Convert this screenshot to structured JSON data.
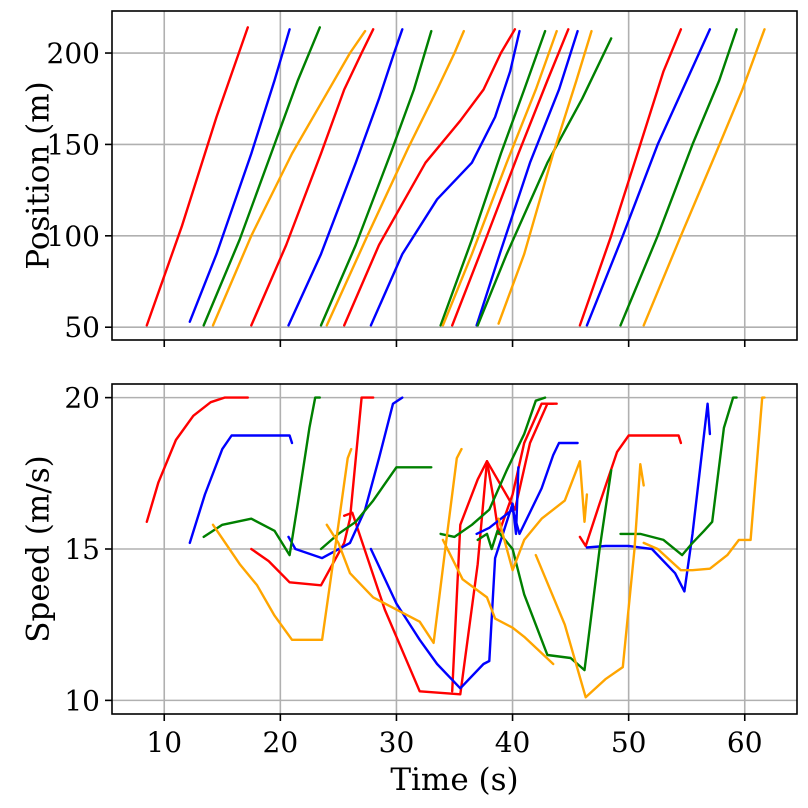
{
  "chart_data": [
    {
      "type": "line",
      "title": "",
      "xlabel": "",
      "ylabel": "Position (m)",
      "xlim": [
        5.5,
        64.5
      ],
      "ylim": [
        43,
        223
      ],
      "xticks": [
        10,
        20,
        30,
        40,
        50,
        60
      ],
      "show_xtick_labels": false,
      "yticks": [
        50,
        100,
        150,
        200
      ],
      "yticklabels": [
        "50",
        "100",
        "150",
        "200"
      ],
      "grid": true,
      "series": [
        {
          "name": "red-1",
          "color": "#ff0000",
          "x": [
            8.5,
            11.5,
            14.5,
            17.2
          ],
          "y": [
            51,
            105,
            165,
            214
          ]
        },
        {
          "name": "blue-1",
          "color": "#0000ff",
          "x": [
            12.2,
            14.5,
            17.5,
            19.5,
            20.8
          ],
          "y": [
            53,
            90,
            145,
            185,
            213
          ]
        },
        {
          "name": "green-1",
          "color": "#008000",
          "x": [
            13.4,
            16.5,
            19.5,
            21.5,
            23.4
          ],
          "y": [
            51,
            98,
            150,
            185,
            214
          ]
        },
        {
          "name": "orange-1",
          "color": "#ffa500",
          "x": [
            14.2,
            17.5,
            21.0,
            24.0,
            26.0,
            27.3
          ],
          "y": [
            51,
            100,
            145,
            178,
            200,
            212
          ]
        },
        {
          "name": "red-2",
          "color": "#ff0000",
          "x": [
            17.5,
            20.5,
            23.5,
            25.5,
            27.0,
            28.0
          ],
          "y": [
            51,
            95,
            145,
            180,
            200,
            213
          ]
        },
        {
          "name": "blue-2",
          "color": "#0000ff",
          "x": [
            20.7,
            23.5,
            26.5,
            28.5,
            29.8,
            30.5
          ],
          "y": [
            51,
            90,
            140,
            175,
            200,
            213
          ]
        },
        {
          "name": "green-2",
          "color": "#008000",
          "x": [
            23.5,
            26.5,
            29.5,
            31.5,
            33.0
          ],
          "y": [
            51,
            95,
            145,
            180,
            212
          ]
        },
        {
          "name": "orange-2",
          "color": "#ffa500",
          "x": [
            24.0,
            27.5,
            31.0,
            33.5,
            35.0,
            35.8
          ],
          "y": [
            51,
            100,
            148,
            180,
            200,
            212
          ]
        },
        {
          "name": "red-3",
          "color": "#ff0000",
          "x": [
            25.5,
            28.5,
            32.5,
            35.5,
            37.5,
            39.0,
            40.2
          ],
          "y": [
            51,
            95,
            140,
            163,
            180,
            200,
            213
          ]
        },
        {
          "name": "blue-3",
          "color": "#0000ff",
          "x": [
            27.8,
            30.5,
            33.5,
            36.5,
            38.5,
            39.8,
            40.6
          ],
          "y": [
            51,
            90,
            120,
            140,
            165,
            190,
            212
          ]
        },
        {
          "name": "green-3",
          "color": "#008000",
          "x": [
            33.8,
            36.5,
            39.0,
            41.0,
            42.8
          ],
          "y": [
            51,
            98,
            145,
            180,
            212
          ]
        },
        {
          "name": "orange-3",
          "color": "#ffa500",
          "x": [
            34.0,
            36.5,
            39.5,
            42.0,
            43.8
          ],
          "y": [
            51,
            90,
            140,
            180,
            212
          ]
        },
        {
          "name": "red-4",
          "color": "#ff0000",
          "x": [
            34.8,
            37.5,
            40.5,
            43.0,
            44.8
          ],
          "y": [
            51,
            95,
            145,
            185,
            213
          ]
        },
        {
          "name": "blue-4",
          "color": "#0000ff",
          "x": [
            36.9,
            39.0,
            41.5,
            44.0,
            45.6
          ],
          "y": [
            51,
            92,
            140,
            180,
            212
          ]
        },
        {
          "name": "green-4",
          "color": "#008000",
          "x": [
            37.0,
            39.5,
            43.0,
            46.0,
            48.5
          ],
          "y": [
            51,
            90,
            140,
            175,
            208
          ]
        },
        {
          "name": "orange-4",
          "color": "#ffa500",
          "x": [
            38.8,
            41.0,
            43.5,
            45.5,
            46.8
          ],
          "y": [
            52,
            90,
            145,
            185,
            212
          ]
        },
        {
          "name": "red-5",
          "color": "#ff0000",
          "x": [
            45.8,
            48.5,
            51.0,
            53.0,
            54.5
          ],
          "y": [
            51,
            100,
            150,
            190,
            213
          ]
        },
        {
          "name": "blue-5",
          "color": "#0000ff",
          "x": [
            46.4,
            49.5,
            52.5,
            55.0,
            57.0
          ],
          "y": [
            51,
            100,
            150,
            185,
            213
          ]
        },
        {
          "name": "green-5",
          "color": "#008000",
          "x": [
            49.3,
            52.5,
            55.5,
            57.8,
            59.3
          ],
          "y": [
            51,
            100,
            150,
            185,
            213
          ]
        },
        {
          "name": "orange-5",
          "color": "#ffa500",
          "x": [
            51.3,
            54.5,
            57.5,
            59.8,
            61.7
          ],
          "y": [
            51,
            100,
            145,
            180,
            213
          ]
        }
      ]
    },
    {
      "type": "line",
      "title": "",
      "xlabel": "Time (s)",
      "ylabel": "Speed (m/s)",
      "xlim": [
        5.5,
        64.5
      ],
      "ylim": [
        9.55,
        20.45
      ],
      "xticks": [
        10,
        20,
        30,
        40,
        50,
        60
      ],
      "xticklabels": [
        "10",
        "20",
        "30",
        "40",
        "50",
        "60"
      ],
      "yticks": [
        10,
        15,
        20
      ],
      "yticklabels": [
        "10",
        "15",
        "20"
      ],
      "grid": true,
      "series": [
        {
          "name": "red-1",
          "color": "#ff0000",
          "x": [
            8.5,
            9.5,
            11.0,
            12.5,
            14.0,
            15.2,
            17.2
          ],
          "y": [
            15.9,
            17.2,
            18.6,
            19.4,
            19.85,
            20.0,
            20.0
          ]
        },
        {
          "name": "red-2",
          "color": "#ff0000",
          "x": [
            17.5,
            19.0,
            20.8,
            23.5,
            25.5,
            26.0,
            27.0,
            28.0
          ],
          "y": [
            15.0,
            14.6,
            13.9,
            13.8,
            15.2,
            16.0,
            20.0,
            20.0
          ]
        },
        {
          "name": "red-3",
          "color": "#ff0000",
          "x": [
            25.5,
            26.2,
            29.0,
            32.0,
            35.5,
            37.0,
            37.8,
            40.2,
            41.5,
            43.0,
            43.5
          ],
          "y": [
            16.1,
            16.2,
            13.0,
            10.3,
            10.2,
            14.5,
            17.9,
            16.3,
            18.5,
            19.8,
            19.8
          ]
        },
        {
          "name": "red-4",
          "color": "#ff0000",
          "x": [
            34.8,
            35.5,
            37.0,
            37.8,
            38.3,
            38.8,
            40.0,
            41.0,
            42.5,
            43.8
          ],
          "y": [
            10.3,
            15.8,
            17.3,
            17.9,
            16.8,
            15.5,
            16.8,
            18.5,
            19.8,
            19.8
          ]
        },
        {
          "name": "red-5",
          "color": "#ff0000",
          "x": [
            45.8,
            46.3,
            47.5,
            49.0,
            50.0,
            53.5,
            54.3,
            54.5
          ],
          "y": [
            15.4,
            15.1,
            16.5,
            18.2,
            18.75,
            18.75,
            18.75,
            18.5
          ]
        },
        {
          "name": "blue-1",
          "color": "#0000ff",
          "x": [
            12.2,
            13.5,
            15.0,
            15.8,
            20.8,
            21.0
          ],
          "y": [
            15.2,
            16.8,
            18.3,
            18.75,
            18.75,
            18.5
          ]
        },
        {
          "name": "blue-2",
          "color": "#0000ff",
          "x": [
            20.7,
            21.3,
            23.6,
            26.0,
            27.3,
            28.5,
            29.7,
            30.5
          ],
          "y": [
            15.4,
            15.0,
            14.7,
            15.2,
            16.3,
            18.0,
            19.8,
            20.0
          ]
        },
        {
          "name": "blue-3",
          "color": "#0000ff",
          "x": [
            27.8,
            30.0,
            32.0,
            33.5,
            35.5,
            37.5,
            38.0,
            38.5,
            40.0,
            40.3,
            40.5
          ],
          "y": [
            15.0,
            13.2,
            12.0,
            11.2,
            10.4,
            11.2,
            11.3,
            14.7,
            16.5,
            15.5,
            17.7
          ]
        },
        {
          "name": "blue-4",
          "color": "#0000ff",
          "x": [
            36.9,
            38.0,
            40.0,
            40.6,
            42.5,
            43.5,
            44.0,
            45.6
          ],
          "y": [
            15.5,
            15.7,
            16.3,
            15.5,
            17.0,
            18.1,
            18.5,
            18.5
          ]
        },
        {
          "name": "blue-5",
          "color": "#0000ff",
          "x": [
            46.4,
            48.0,
            50.0,
            52.0,
            54.0,
            54.8,
            55.5,
            56.8,
            57.0
          ],
          "y": [
            15.05,
            15.1,
            15.1,
            15.0,
            14.2,
            13.6,
            15.5,
            19.8,
            18.8
          ]
        },
        {
          "name": "green-1",
          "color": "#008000",
          "x": [
            13.4,
            15.0,
            17.5,
            19.5,
            20.8,
            21.5,
            22.5,
            23.0,
            23.4
          ],
          "y": [
            15.4,
            15.8,
            16.0,
            15.6,
            14.8,
            16.5,
            19.0,
            20.0,
            20.0
          ]
        },
        {
          "name": "green-2",
          "color": "#008000",
          "x": [
            23.5,
            25.0,
            26.5,
            28.0,
            30.0,
            33.0
          ],
          "y": [
            15.0,
            15.5,
            15.9,
            16.6,
            17.7,
            17.7
          ]
        },
        {
          "name": "green-3",
          "color": "#008000",
          "x": [
            33.8,
            35.0,
            36.5,
            38.0,
            39.5,
            41.0,
            42.0,
            42.8
          ],
          "y": [
            15.5,
            15.4,
            15.8,
            16.3,
            17.6,
            18.8,
            19.9,
            20.0
          ]
        },
        {
          "name": "green-4",
          "color": "#008000",
          "x": [
            37.0,
            37.8,
            38.2,
            38.7,
            40.0,
            41.0,
            43.0,
            45.0,
            46.2,
            47.5,
            48.5
          ],
          "y": [
            15.3,
            15.5,
            15.0,
            15.6,
            15.0,
            13.5,
            11.5,
            11.4,
            11.0,
            15.0,
            17.6
          ]
        },
        {
          "name": "green-5",
          "color": "#008000",
          "x": [
            49.3,
            51.0,
            53.0,
            54.6,
            55.5,
            56.5,
            57.2,
            58.2,
            59.0,
            59.3
          ],
          "y": [
            15.5,
            15.5,
            15.3,
            14.8,
            15.2,
            15.6,
            15.9,
            19.0,
            20.0,
            20.0
          ]
        },
        {
          "name": "orange-1",
          "color": "#ffa500",
          "x": [
            14.2,
            16.5,
            18.0,
            19.5,
            21.0,
            23.6,
            25.0,
            25.8,
            26.1
          ],
          "y": [
            15.8,
            14.5,
            13.8,
            12.8,
            12.0,
            12.0,
            15.8,
            18.0,
            18.3
          ]
        },
        {
          "name": "orange-2",
          "color": "#ffa500",
          "x": [
            24.0,
            25.0,
            26.0,
            28.0,
            30.0,
            32.0,
            33.2,
            34.3,
            35.2,
            35.6
          ],
          "y": [
            15.8,
            15.2,
            14.2,
            13.4,
            13.0,
            12.6,
            11.9,
            15.3,
            18.0,
            18.3
          ]
        },
        {
          "name": "orange-3",
          "color": "#ffa500",
          "x": [
            34.0,
            35.7,
            37.8,
            38.5,
            40.0,
            41.0,
            43.5
          ],
          "y": [
            15.3,
            14.0,
            13.4,
            12.7,
            12.4,
            12.1,
            11.2
          ]
        },
        {
          "name": "orange-4",
          "color": "#ffa500",
          "x": [
            38.8,
            40.0,
            41.0,
            42.5,
            44.5,
            45.8,
            46.2,
            46.4
          ],
          "y": [
            16.0,
            14.3,
            15.3,
            16.0,
            16.6,
            17.9,
            15.9,
            16.8
          ]
        },
        {
          "name": "orange-5",
          "color": "#ffa500",
          "x": [
            42.0,
            44.5,
            46.3,
            48.0,
            49.5,
            50.5,
            51.0,
            51.3
          ],
          "y": [
            14.8,
            12.5,
            10.1,
            10.7,
            11.1,
            15.0,
            17.8,
            17.1
          ]
        },
        {
          "name": "orange-6",
          "color": "#ffa500",
          "x": [
            51.3,
            52.5,
            54.5,
            55.5,
            57.0,
            58.5,
            59.5,
            60.5,
            61.5,
            61.7
          ],
          "y": [
            15.2,
            15.0,
            14.3,
            14.3,
            14.35,
            14.8,
            15.3,
            15.3,
            20.0,
            20.0
          ]
        }
      ]
    }
  ]
}
